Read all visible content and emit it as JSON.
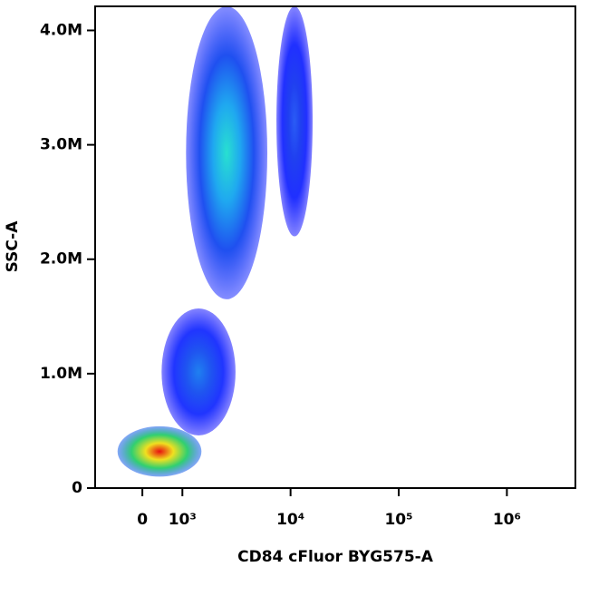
{
  "chart_data": {
    "type": "density",
    "x_label": "CD84 cFluor BYG575-A",
    "y_label": "SSC-A",
    "x_scale": "biexponential",
    "xlim": [
      -1180,
      4300000
    ],
    "xticks": [
      0,
      {
        "value": 1000,
        "label": "10³"
      },
      {
        "value": 10000,
        "label": "10⁴"
      },
      {
        "value": 100000,
        "label": "10⁵"
      },
      {
        "value": 1000000,
        "label": "10⁶"
      }
    ],
    "ylim": [
      0,
      4210000
    ],
    "yticks": [
      0,
      {
        "value": 1000000,
        "label": "1.0M"
      },
      {
        "value": 2000000,
        "label": "2.0M"
      },
      {
        "value": 3000000,
        "label": "3.0M"
      },
      {
        "value": 4000000,
        "label": "4.0M"
      }
    ],
    "populations": [
      {
        "x_range": [
          1080,
          6100
        ],
        "y_range": [
          1650000,
          4210000
        ],
        "colors": [
          "#28e0d0",
          "#1fa8f0",
          "#1f50f0",
          "#2030ff"
        ]
      },
      {
        "x_range": [
          7400,
          16000
        ],
        "y_range": [
          2200000,
          4210000
        ],
        "colors": [
          "#2a5cf5",
          "#2040f0",
          "#2030ff",
          "#2020ff"
        ]
      },
      {
        "x_range": [
          480,
          3100
        ],
        "y_range": [
          460000,
          1570000
        ],
        "colors": [
          "#1f80f0",
          "#1f55f0",
          "#2035ff",
          "#2020ff"
        ]
      },
      {
        "x_range": [
          -620,
          1500
        ],
        "y_range": [
          100000,
          540000
        ],
        "colors": [
          "#e81010",
          "#f0e020",
          "#30d070",
          "#1f60f0"
        ]
      }
    ]
  }
}
